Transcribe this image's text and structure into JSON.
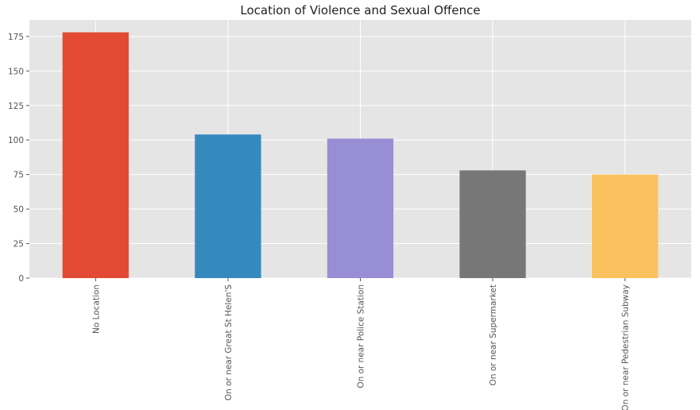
{
  "chart_data": {
    "type": "bar",
    "title": "Location of Violence and Sexual Offence",
    "xlabel": "",
    "ylabel": "",
    "categories": [
      "No Location",
      "On or near Great St Helen'S",
      "On or near Police Station",
      "On or near Supermarket",
      "On or near Pedestrian Subway"
    ],
    "values": [
      178,
      104,
      101,
      78,
      75
    ],
    "colors": [
      "#e24a33",
      "#348abd",
      "#988ed5",
      "#777777",
      "#fbc15e"
    ],
    "ylim": [
      0,
      187
    ],
    "yticks": [
      0,
      25,
      50,
      75,
      100,
      125,
      150,
      175
    ],
    "grid": true,
    "legend": "none",
    "background_color": "#e5e5e5",
    "grid_color": "#ffffff"
  }
}
